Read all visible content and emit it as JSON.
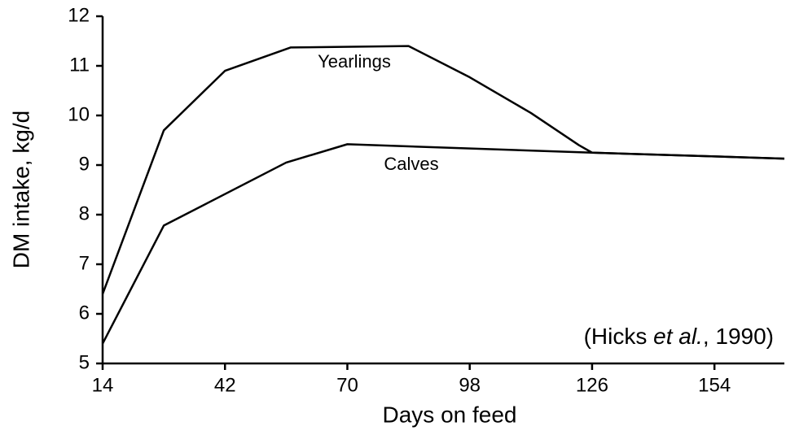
{
  "chart_data": {
    "type": "line",
    "x_label": "Days on feed",
    "y_label": "DM intake, kg/d",
    "xlim": [
      14,
      170
    ],
    "xticks": [
      14,
      42,
      70,
      98,
      126,
      154
    ],
    "ylim": [
      5,
      12
    ],
    "yticks": [
      5,
      6,
      7,
      8,
      9,
      10,
      11,
      12
    ],
    "grid": false,
    "series": [
      {
        "name": "Yearlings",
        "color": "#000000",
        "x": [
          14,
          28,
          42,
          57,
          84,
          98,
          112,
          123,
          126,
          170
        ],
        "values": [
          6.4,
          9.7,
          10.9,
          11.37,
          11.4,
          10.77,
          10.05,
          9.4,
          9.25,
          9.13
        ]
      },
      {
        "name": "Calves",
        "color": "#000000",
        "x": [
          14,
          28,
          56,
          70,
          126,
          170
        ],
        "values": [
          5.4,
          7.78,
          9.05,
          9.42,
          9.25,
          9.13
        ]
      }
    ],
    "annotation": [
      "(Hicks ",
      "et al.",
      ", 1990)"
    ]
  }
}
